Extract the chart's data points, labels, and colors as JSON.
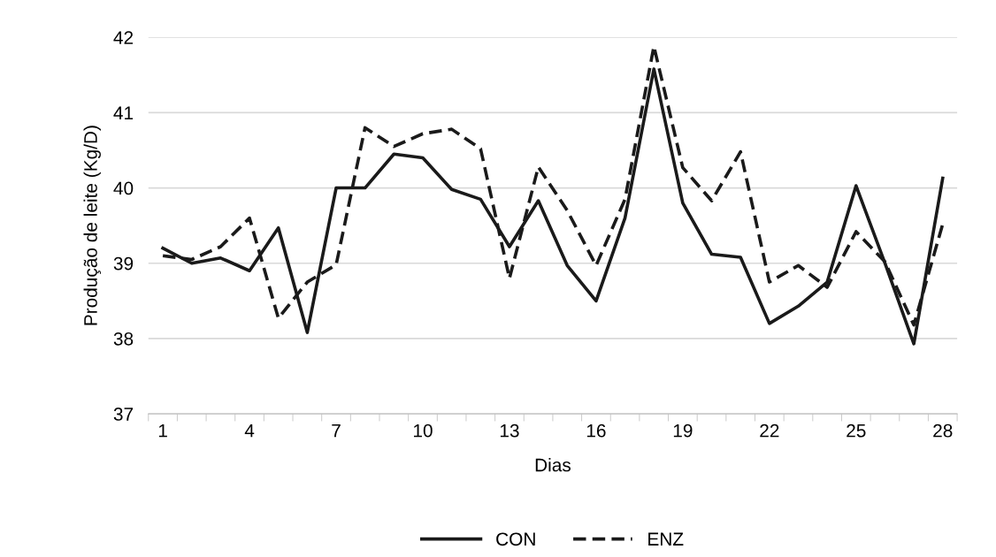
{
  "chart_data": {
    "type": "line",
    "xlabel": "Dias",
    "ylabel": "Produção de leite (Kg/D)",
    "categories": [
      "1",
      null,
      null,
      "4",
      null,
      null,
      "7",
      null,
      null,
      "10",
      null,
      null,
      "13",
      null,
      null,
      "16",
      null,
      null,
      "19",
      null,
      null,
      "22",
      null,
      null,
      "25",
      null,
      null,
      "28"
    ],
    "series": [
      {
        "name": "CON",
        "color": "#1a1a1a",
        "line_style": "solid",
        "values": [
          39.2,
          39.0,
          39.07,
          38.9,
          39.47,
          38.08,
          40.0,
          40.0,
          40.45,
          40.4,
          39.98,
          39.85,
          39.22,
          39.83,
          38.97,
          38.5,
          39.6,
          41.58,
          39.8,
          39.12,
          39.08,
          38.2,
          38.43,
          38.75,
          40.03,
          39.0,
          37.93,
          40.13
        ]
      },
      {
        "name": "ENZ",
        "color": "#1a1a1a",
        "line_style": "dashed",
        "values": [
          39.1,
          39.05,
          39.22,
          39.6,
          38.27,
          38.75,
          38.98,
          40.8,
          40.55,
          40.72,
          40.78,
          40.52,
          38.8,
          40.28,
          39.7,
          38.97,
          39.85,
          41.88,
          40.27,
          39.83,
          40.48,
          38.75,
          38.97,
          38.68,
          39.42,
          39.02,
          38.18,
          39.52
        ]
      }
    ],
    "ylim": [
      37,
      42
    ],
    "yticks": [
      37,
      38,
      39,
      40,
      41,
      42
    ],
    "grid": "y",
    "legend": "bottom",
    "marker": "none"
  }
}
